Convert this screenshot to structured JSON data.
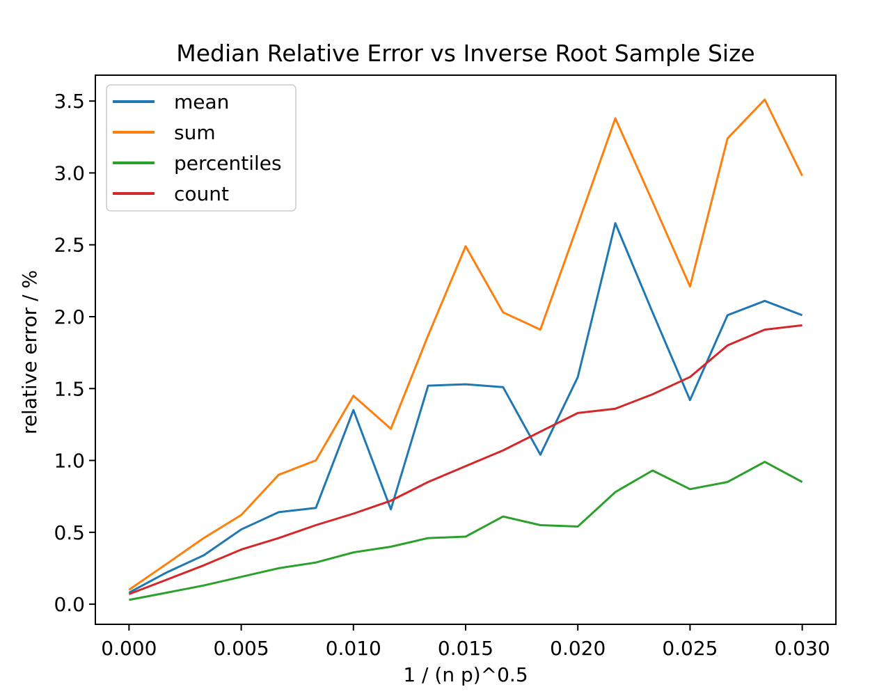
{
  "title": "Median Relative Error vs Inverse Root Sample Size",
  "chart_data": {
    "type": "line",
    "title": "Median Relative Error vs Inverse Root Sample Size",
    "xlabel": "1 / (n p)^0.5",
    "ylabel": "relative error / %",
    "xlim": [
      -0.0015,
      0.0315
    ],
    "ylim": [
      -0.14,
      3.68
    ],
    "grid": false,
    "legend_position": "upper left",
    "x_ticks": {
      "values": [
        0.0,
        0.005,
        0.01,
        0.015,
        0.02,
        0.025,
        0.03
      ],
      "labels": [
        "0.000",
        "0.005",
        "0.010",
        "0.015",
        "0.020",
        "0.025",
        "0.030"
      ]
    },
    "y_ticks": {
      "values": [
        0.0,
        0.5,
        1.0,
        1.5,
        2.0,
        2.5,
        3.0,
        3.5
      ],
      "labels": [
        "0.0",
        "0.5",
        "1.0",
        "1.5",
        "2.0",
        "2.5",
        "3.0",
        "3.5"
      ]
    },
    "x": [
      0.0,
      0.00167,
      0.00333,
      0.005,
      0.00667,
      0.00833,
      0.01,
      0.01167,
      0.01333,
      0.015,
      0.01667,
      0.01833,
      0.02,
      0.02167,
      0.02333,
      0.025,
      0.02667,
      0.02833,
      0.03
    ],
    "series": [
      {
        "name": "mean",
        "color": "#1f77b4",
        "values": [
          0.08,
          0.22,
          0.34,
          0.52,
          0.64,
          0.67,
          1.35,
          0.66,
          1.52,
          1.53,
          1.51,
          1.04,
          1.58,
          2.65,
          2.03,
          1.42,
          2.01,
          2.11,
          2.01
        ]
      },
      {
        "name": "sum",
        "color": "#ff7f0e",
        "values": [
          0.1,
          0.28,
          0.46,
          0.62,
          0.9,
          1.0,
          1.45,
          1.22,
          1.87,
          2.49,
          2.03,
          1.91,
          2.64,
          3.38,
          2.8,
          2.21,
          3.24,
          3.51,
          2.98
        ]
      },
      {
        "name": "percentiles",
        "color": "#2ca02c",
        "values": [
          0.03,
          0.08,
          0.13,
          0.19,
          0.25,
          0.29,
          0.36,
          0.4,
          0.46,
          0.47,
          0.61,
          0.55,
          0.54,
          0.78,
          0.93,
          0.8,
          0.85,
          0.99,
          0.85
        ]
      },
      {
        "name": "count",
        "color": "#d62728",
        "values": [
          0.07,
          0.17,
          0.27,
          0.38,
          0.46,
          0.55,
          0.63,
          0.72,
          0.85,
          0.96,
          1.07,
          1.2,
          1.33,
          1.36,
          1.46,
          1.58,
          1.8,
          1.91,
          1.94
        ]
      }
    ]
  }
}
